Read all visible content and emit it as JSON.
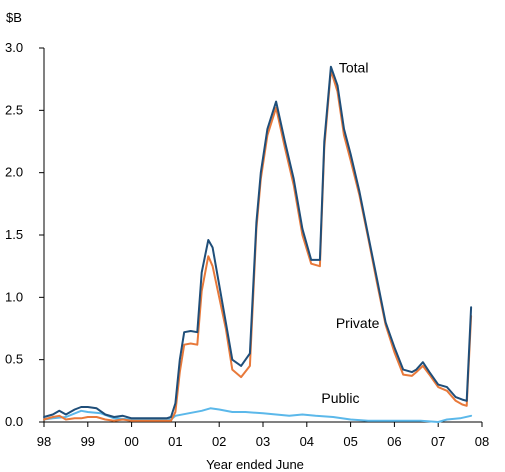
{
  "chart_data": {
    "type": "line",
    "ylabel": "$B",
    "xlabel": "Year ended June",
    "ylim": [
      0,
      3.0
    ],
    "xlim": [
      1998,
      2008
    ],
    "y_ticks": [
      "0.0",
      "0.5",
      "1.0",
      "1.5",
      "2.0",
      "2.5",
      "3.0"
    ],
    "x_ticks": [
      "98",
      "99",
      "00",
      "01",
      "02",
      "03",
      "04",
      "05",
      "06",
      "07",
      "08"
    ],
    "grid": false,
    "legend": "inline labels",
    "series": [
      {
        "name": "Total",
        "color": "#1f4e79",
        "x": [
          1998.0,
          1998.2,
          1998.35,
          1998.5,
          1998.7,
          1998.85,
          1999.0,
          1999.2,
          1999.4,
          1999.6,
          1999.8,
          2000.0,
          2000.3,
          2000.6,
          2000.8,
          2000.9,
          2001.0,
          2001.1,
          2001.2,
          2001.35,
          2001.5,
          2001.6,
          2001.75,
          2001.85,
          2002.0,
          2002.15,
          2002.3,
          2002.5,
          2002.7,
          2002.85,
          2002.95,
          2003.1,
          2003.3,
          2003.5,
          2003.7,
          2003.9,
          2004.1,
          2004.3,
          2004.4,
          2004.55,
          2004.7,
          2004.85,
          2005.0,
          2005.2,
          2005.4,
          2005.6,
          2005.8,
          2006.0,
          2006.2,
          2006.4,
          2006.5,
          2006.65,
          2006.8,
          2007.0,
          2007.2,
          2007.4,
          2007.55,
          2007.65,
          2007.75
        ],
        "y": [
          0.04,
          0.06,
          0.09,
          0.06,
          0.1,
          0.12,
          0.12,
          0.11,
          0.06,
          0.04,
          0.05,
          0.03,
          0.03,
          0.03,
          0.03,
          0.04,
          0.15,
          0.5,
          0.72,
          0.73,
          0.72,
          1.2,
          1.46,
          1.4,
          1.1,
          0.8,
          0.5,
          0.45,
          0.55,
          1.6,
          2.0,
          2.35,
          2.57,
          2.25,
          1.95,
          1.55,
          1.3,
          1.3,
          2.25,
          2.85,
          2.7,
          2.35,
          2.15,
          1.85,
          1.5,
          1.15,
          0.8,
          0.6,
          0.42,
          0.4,
          0.42,
          0.48,
          0.4,
          0.3,
          0.28,
          0.2,
          0.18,
          0.17,
          0.92
        ]
      },
      {
        "name": "Private",
        "color": "#e8793a",
        "x": [
          1998.0,
          1998.2,
          1998.35,
          1998.5,
          1998.7,
          1998.85,
          1999.0,
          1999.2,
          1999.4,
          1999.6,
          1999.8,
          2000.0,
          2000.3,
          2000.6,
          2000.8,
          2000.9,
          2001.0,
          2001.1,
          2001.2,
          2001.35,
          2001.5,
          2001.6,
          2001.75,
          2001.85,
          2002.0,
          2002.15,
          2002.3,
          2002.5,
          2002.7,
          2002.85,
          2002.95,
          2003.1,
          2003.3,
          2003.5,
          2003.7,
          2003.9,
          2004.1,
          2004.3,
          2004.4,
          2004.55,
          2004.7,
          2004.85,
          2005.0,
          2005.2,
          2005.4,
          2005.6,
          2005.8,
          2006.0,
          2006.2,
          2006.4,
          2006.5,
          2006.65,
          2006.8,
          2007.0,
          2007.2,
          2007.4,
          2007.55,
          2007.65,
          2007.75
        ],
        "y": [
          0.02,
          0.04,
          0.05,
          0.02,
          0.03,
          0.03,
          0.04,
          0.04,
          0.02,
          0.01,
          0.02,
          0.01,
          0.01,
          0.01,
          0.01,
          0.01,
          0.08,
          0.4,
          0.62,
          0.63,
          0.62,
          1.05,
          1.33,
          1.25,
          1.0,
          0.75,
          0.42,
          0.36,
          0.45,
          1.55,
          1.95,
          2.3,
          2.52,
          2.2,
          1.9,
          1.5,
          1.27,
          1.25,
          2.2,
          2.82,
          2.65,
          2.3,
          2.1,
          1.82,
          1.48,
          1.12,
          0.78,
          0.56,
          0.38,
          0.37,
          0.4,
          0.45,
          0.38,
          0.28,
          0.25,
          0.17,
          0.14,
          0.13,
          0.85
        ]
      },
      {
        "name": "Public",
        "color": "#5bb8ea",
        "x": [
          1998.0,
          1998.2,
          1998.5,
          1998.85,
          1999.0,
          1999.3,
          1999.6,
          2000.0,
          2000.5,
          2000.9,
          2001.0,
          2001.3,
          2001.6,
          2001.8,
          2002.0,
          2002.3,
          2002.6,
          2003.0,
          2003.3,
          2003.6,
          2003.9,
          2004.2,
          2004.6,
          2005.0,
          2005.4,
          2005.8,
          2006.2,
          2006.6,
          2007.0,
          2007.2,
          2007.5,
          2007.75
        ],
        "y": [
          0.02,
          0.03,
          0.04,
          0.09,
          0.08,
          0.07,
          0.03,
          0.02,
          0.02,
          0.02,
          0.05,
          0.07,
          0.09,
          0.11,
          0.1,
          0.08,
          0.08,
          0.07,
          0.06,
          0.05,
          0.06,
          0.05,
          0.04,
          0.02,
          0.01,
          0.01,
          0.01,
          0.01,
          0.0,
          0.02,
          0.03,
          0.05
        ]
      }
    ],
    "annotations": [
      {
        "text": "Total",
        "x": 2004.55,
        "y": 2.82
      },
      {
        "text": "Private",
        "x": 2004.48,
        "y": 0.77
      },
      {
        "text": "Public",
        "x": 2004.15,
        "y": 0.17
      }
    ]
  }
}
